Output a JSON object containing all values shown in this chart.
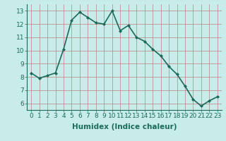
{
  "x": [
    0,
    1,
    2,
    3,
    4,
    5,
    6,
    7,
    8,
    9,
    10,
    11,
    12,
    13,
    14,
    15,
    16,
    17,
    18,
    19,
    20,
    21,
    22,
    23
  ],
  "y": [
    8.3,
    7.9,
    8.1,
    8.3,
    10.1,
    12.3,
    12.9,
    12.5,
    12.1,
    12.0,
    13.0,
    11.5,
    11.9,
    11.0,
    10.7,
    10.1,
    9.6,
    8.8,
    8.2,
    7.3,
    6.3,
    5.8,
    6.2,
    6.5
  ],
  "line_color": "#1a6b5a",
  "marker": "D",
  "marker_size": 2,
  "bg_color": "#c8ecea",
  "grid_major_color": "#c08080",
  "grid_minor_color": "#c8ecea",
  "xlabel": "Humidex (Indice chaleur)",
  "ylim": [
    5.5,
    13.5
  ],
  "xlim": [
    -0.5,
    23.5
  ],
  "yticks": [
    6,
    7,
    8,
    9,
    10,
    11,
    12,
    13
  ],
  "xticks": [
    0,
    1,
    2,
    3,
    4,
    5,
    6,
    7,
    8,
    9,
    10,
    11,
    12,
    13,
    14,
    15,
    16,
    17,
    18,
    19,
    20,
    21,
    22,
    23
  ],
  "xlabel_fontsize": 7.5,
  "tick_fontsize": 6.5,
  "line_width": 1.2,
  "tick_color": "#1a6b5a",
  "label_color": "#1a6b5a"
}
